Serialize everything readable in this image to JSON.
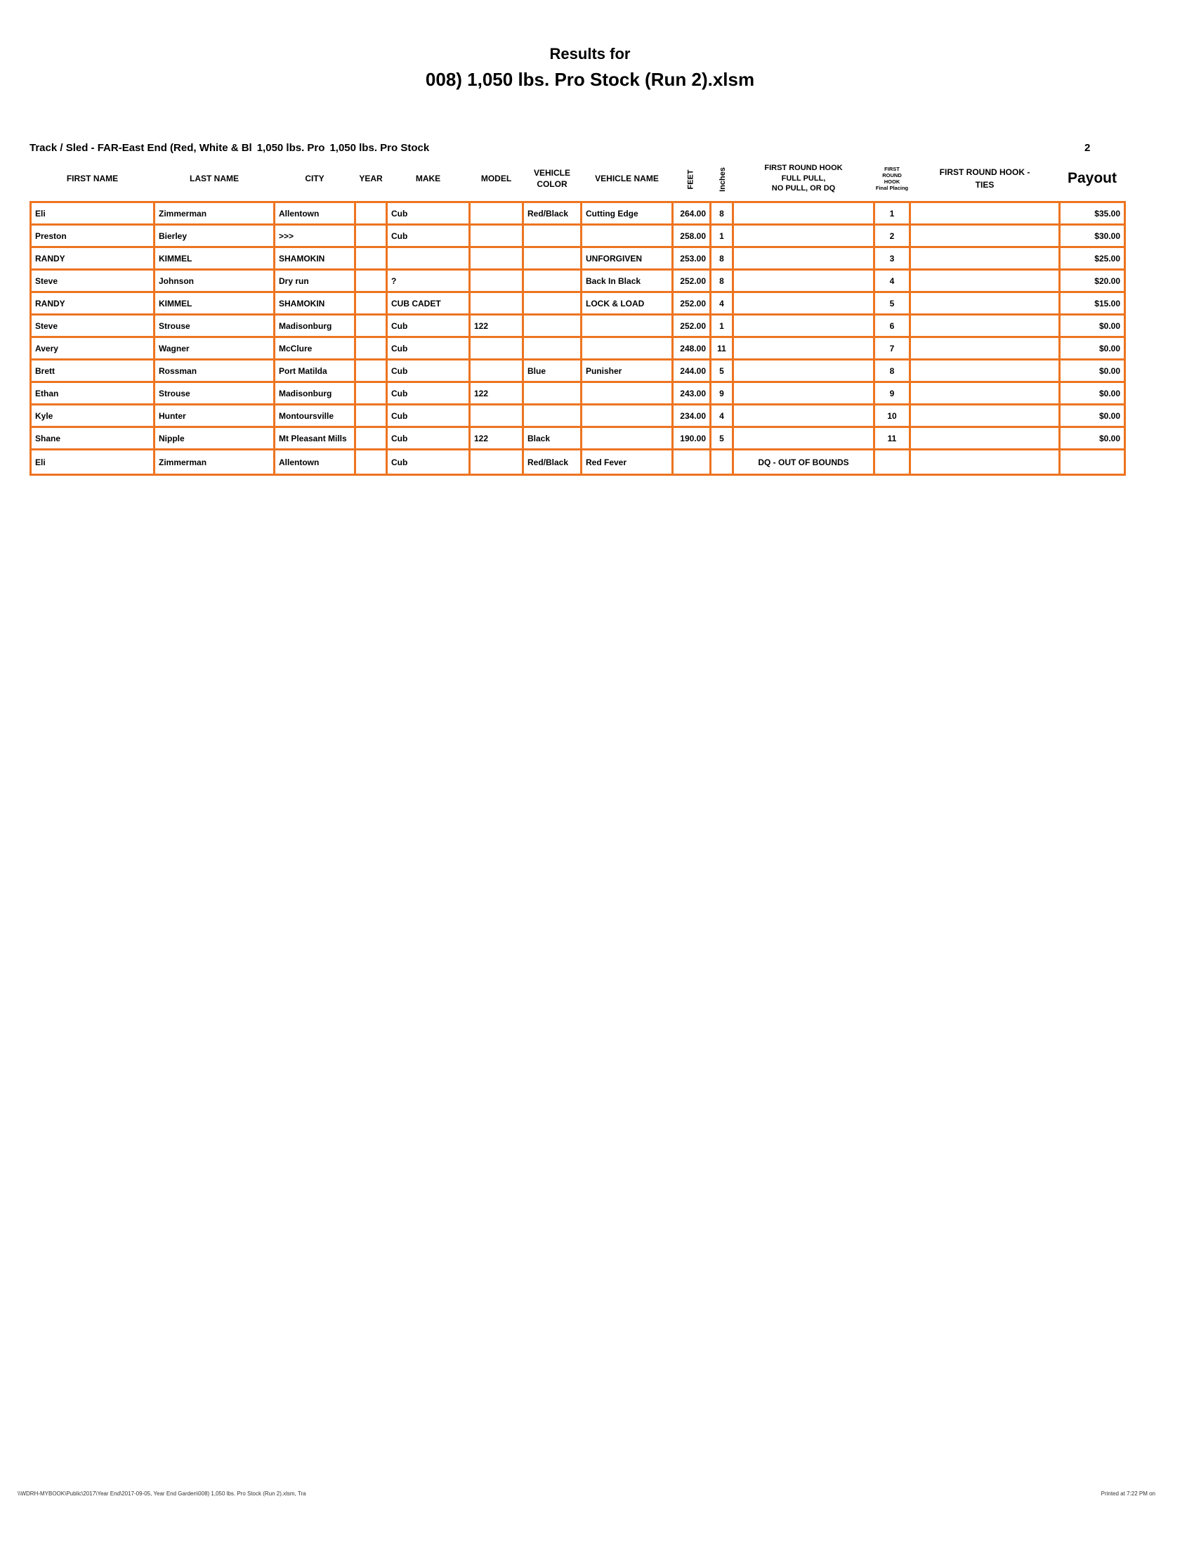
{
  "title": {
    "line1": "Results for",
    "line2": "008) 1,050 lbs. Pro Stock (Run 2).xlsm"
  },
  "meta": {
    "track_part1": "Track / Sled - FAR-East End (Red, White & Bl",
    "track_part2": "1,050 lbs. Pro",
    "track_part3": "1,050 lbs. Pro Stock",
    "page_number": "2"
  },
  "table": {
    "headers": {
      "first_name": "FIRST NAME",
      "last_name": "LAST NAME",
      "city": "CITY",
      "year": "YEAR",
      "make": "MAKE",
      "model": "MODEL",
      "vehicle_color": "VEHICLE\nCOLOR",
      "vehicle_name": "VEHICLE NAME",
      "feet": "FEET",
      "inches": "Inches",
      "hook": "FIRST ROUND HOOK\nFULL PULL,\nNO PULL, OR DQ",
      "placing": "FIRST\nROUND\nHOOK\nFinal Placing",
      "ties": "FIRST ROUND HOOK -\nTIES",
      "payout": "Payout"
    },
    "rows": [
      {
        "first_name": "Eli",
        "last_name": "Zimmerman",
        "city": "Allentown",
        "year": "",
        "make": "Cub",
        "model": "",
        "vehicle_color": "Red/Black",
        "vehicle_name": "Cutting Edge",
        "feet": "264.00",
        "inches": "8",
        "hook": "",
        "placing": "1",
        "ties": "",
        "payout": "$35.00"
      },
      {
        "first_name": "Preston",
        "last_name": "Bierley",
        "city": ">>>",
        "year": "",
        "make": "Cub",
        "model": "",
        "vehicle_color": "",
        "vehicle_name": "",
        "feet": "258.00",
        "inches": "1",
        "hook": "",
        "placing": "2",
        "ties": "",
        "payout": "$30.00"
      },
      {
        "first_name": "RANDY",
        "last_name": "KIMMEL",
        "city": "SHAMOKIN",
        "year": "",
        "make": "",
        "model": "",
        "vehicle_color": "",
        "vehicle_name": "UNFORGIVEN",
        "feet": "253.00",
        "inches": "8",
        "hook": "",
        "placing": "3",
        "ties": "",
        "payout": "$25.00"
      },
      {
        "first_name": "Steve",
        "last_name": "Johnson",
        "city": "Dry run",
        "year": "",
        "make": "?",
        "model": "",
        "vehicle_color": "",
        "vehicle_name": "Back In Black",
        "feet": "252.00",
        "inches": "8",
        "hook": "",
        "placing": "4",
        "ties": "",
        "payout": "$20.00"
      },
      {
        "first_name": "RANDY",
        "last_name": "KIMMEL",
        "city": "SHAMOKIN",
        "year": "",
        "make": "CUB CADET",
        "model": "",
        "vehicle_color": "",
        "vehicle_name": "LOCK & LOAD",
        "feet": "252.00",
        "inches": "4",
        "hook": "",
        "placing": "5",
        "ties": "",
        "payout": "$15.00"
      },
      {
        "first_name": "Steve",
        "last_name": "Strouse",
        "city": "Madisonburg",
        "year": "",
        "make": "Cub",
        "model": "122",
        "vehicle_color": "",
        "vehicle_name": "",
        "feet": "252.00",
        "inches": "1",
        "hook": "",
        "placing": "6",
        "ties": "",
        "payout": "$0.00"
      },
      {
        "first_name": "Avery",
        "last_name": "Wagner",
        "city": "McClure",
        "year": "",
        "make": "Cub",
        "model": "",
        "vehicle_color": "",
        "vehicle_name": "",
        "feet": "248.00",
        "inches": "11",
        "hook": "",
        "placing": "7",
        "ties": "",
        "payout": "$0.00"
      },
      {
        "first_name": "Brett",
        "last_name": "Rossman",
        "city": "Port Matilda",
        "year": "",
        "make": "Cub",
        "model": "",
        "vehicle_color": "Blue",
        "vehicle_name": "Punisher",
        "feet": "244.00",
        "inches": "5",
        "hook": "",
        "placing": "8",
        "ties": "",
        "payout": "$0.00"
      },
      {
        "first_name": "Ethan",
        "last_name": "Strouse",
        "city": "Madisonburg",
        "year": "",
        "make": "Cub",
        "model": "122",
        "vehicle_color": "",
        "vehicle_name": "",
        "feet": "243.00",
        "inches": "9",
        "hook": "",
        "placing": "9",
        "ties": "",
        "payout": "$0.00"
      },
      {
        "first_name": "Kyle",
        "last_name": "Hunter",
        "city": "Montoursville",
        "year": "",
        "make": "Cub",
        "model": "",
        "vehicle_color": "",
        "vehicle_name": "",
        "feet": "234.00",
        "inches": "4",
        "hook": "",
        "placing": "10",
        "ties": "",
        "payout": "$0.00"
      },
      {
        "first_name": "Shane",
        "last_name": "Nipple",
        "city": "Mt Pleasant Mills",
        "year": "",
        "make": "Cub",
        "model": "122",
        "vehicle_color": "Black",
        "vehicle_name": "",
        "feet": "190.00",
        "inches": "5",
        "hook": "",
        "placing": "11",
        "ties": "",
        "payout": "$0.00"
      },
      {
        "first_name": "Eli",
        "last_name": "Zimmerman",
        "city": "Allentown",
        "year": "",
        "make": "Cub",
        "model": "",
        "vehicle_color": "Red/Black",
        "vehicle_name": "Red Fever",
        "feet": "",
        "inches": "",
        "hook": "DQ - OUT OF BOUNDS",
        "placing": "",
        "ties": "",
        "payout": ""
      }
    ]
  },
  "footer": {
    "left": "\\\\WDRH-MYBOOK\\Public\\2017\\Year End\\2017-09-05, Year End Garden\\008) 1,050 lbs. Pro Stock (Run 2).xlsm, Tra",
    "right": "Printed at 7:22 PM on"
  },
  "colors": {
    "grid_border": "#ED7420"
  }
}
